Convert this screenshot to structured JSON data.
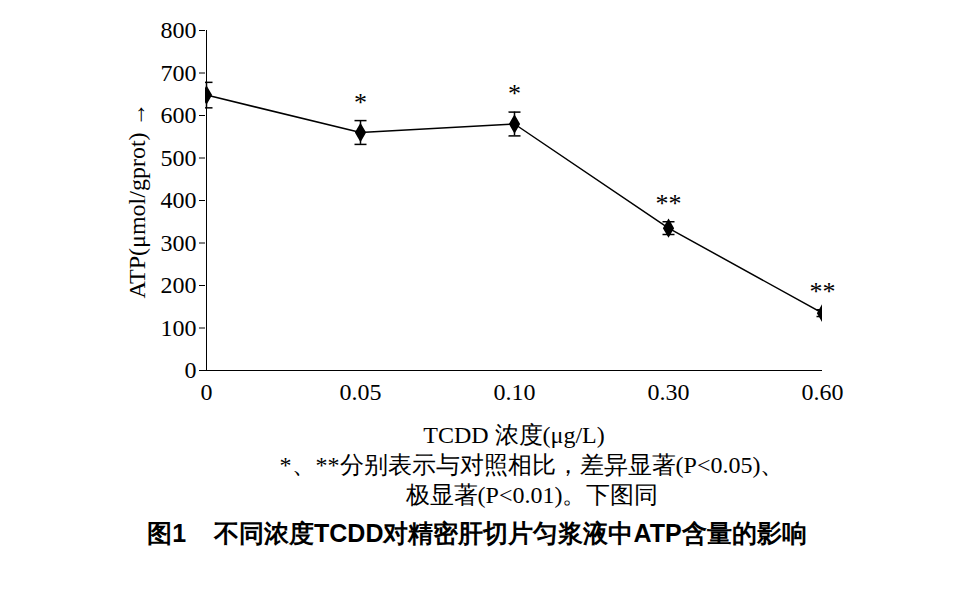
{
  "chart_data": {
    "type": "line",
    "title": "图1    不同浓度TCDD对精密肝切片匀浆液中ATP含量的影响",
    "notes": [
      "*、**分别表示与对照相比，差异显著(P<0.05)、",
      "极显著(P<0.01)。下图同"
    ],
    "x_label": "TCDD 浓度(μg/L)",
    "y_label": "ATP(μmol/gprot)",
    "categories": [
      "0",
      "0.05",
      "0.10",
      "0.30",
      "0.60"
    ],
    "values": [
      648,
      560,
      580,
      335,
      135
    ],
    "errors": [
      30,
      28,
      28,
      15,
      8
    ],
    "significance": [
      null,
      "*",
      "*",
      "**",
      "**"
    ],
    "color": "#000000",
    "marker": "diamond",
    "ylim": [
      0,
      800
    ],
    "yticks": [
      0,
      100,
      200,
      300,
      400,
      500,
      600,
      700,
      800
    ],
    "grid": false
  }
}
